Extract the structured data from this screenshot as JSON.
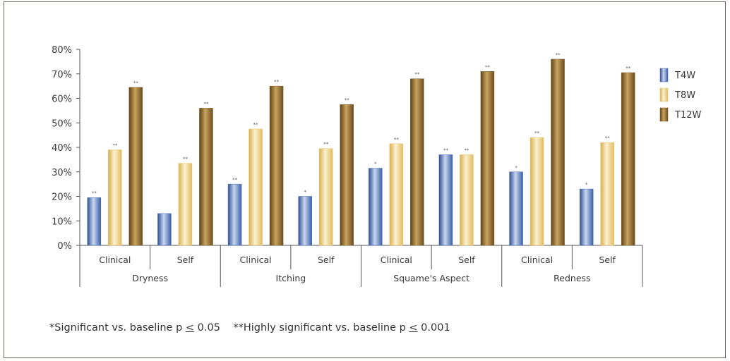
{
  "chart_data": {
    "type": "bar",
    "ylim": [
      0,
      80
    ],
    "yticks": [
      "0%",
      "10%",
      "20%",
      "30%",
      "40%",
      "50%",
      "60%",
      "70%",
      "80%"
    ],
    "groups": [
      {
        "name": "Dryness",
        "categories": [
          "Clinical",
          "Self"
        ]
      },
      {
        "name": "Itching",
        "categories": [
          "Clinical",
          "Self"
        ]
      },
      {
        "name": "Squame's Aspect",
        "categories": [
          "Clinical",
          "Self"
        ]
      },
      {
        "name": "Redness",
        "categories": [
          "Clinical",
          "Self"
        ]
      }
    ],
    "categories": [
      "Clinical",
      "Self",
      "Clinical",
      "Self",
      "Clinical",
      "Self",
      "Clinical",
      "Self"
    ],
    "series": [
      {
        "name": "T4W",
        "color": "#4a6fb5",
        "values": [
          19.5,
          13,
          25,
          20,
          31.5,
          37,
          30,
          23
        ],
        "significance": [
          "**",
          "",
          "**",
          "*",
          "*",
          "**",
          "*",
          "*"
        ]
      },
      {
        "name": "T8W",
        "color": "#e8c66e",
        "values": [
          39,
          33.5,
          47.5,
          39.5,
          41.5,
          37,
          44,
          42
        ],
        "significance": [
          "**",
          "**",
          "**",
          "**",
          "**",
          "**",
          "**",
          "**"
        ]
      },
      {
        "name": "T12W",
        "color": "#7d5f2c",
        "values": [
          64.5,
          56,
          65,
          57.5,
          68,
          71,
          76,
          70.5
        ],
        "significance": [
          "**",
          "**",
          "**",
          "**",
          "**",
          "**",
          "**",
          "**"
        ]
      }
    ]
  },
  "footnote": {
    "part1": "*Significant vs. baseline p ",
    "le1": "<",
    "part2": " 0.05    **Highly significant vs. baseline p ",
    "le2": "<",
    "part3": " 0.001"
  }
}
